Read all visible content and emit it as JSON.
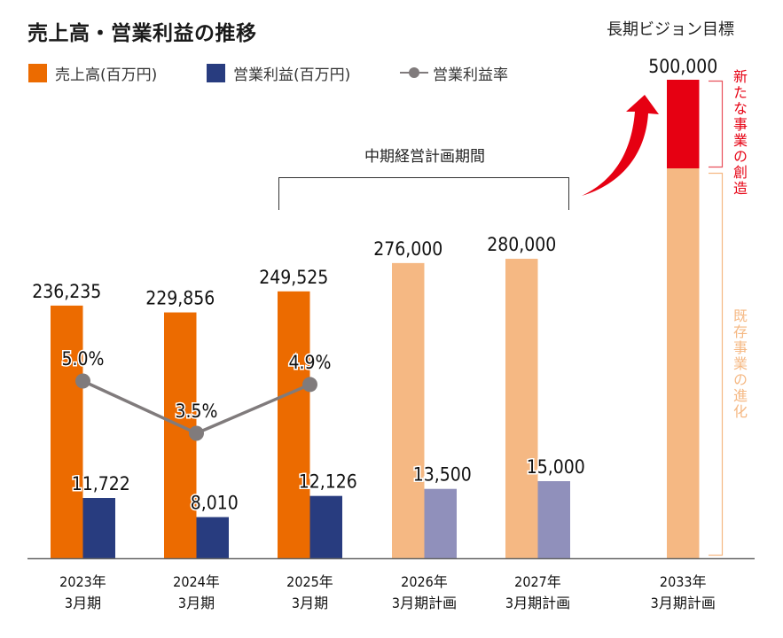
{
  "title": "売上高・営業利益の推移",
  "vision_title": "長期ビジョン目標",
  "midterm_label": "中期経営計画期間",
  "side_labels": {
    "new_business": "新たな事業の創造",
    "existing_business": "既存事業の進化"
  },
  "colors": {
    "sales_actual": "#ec6b00",
    "sales_plan": "#f5b883",
    "profit_actual": "#283c7f",
    "profit_plan": "#9090bb",
    "margin_line": "#807b7c",
    "new_business": "#e60012",
    "axis": "#666666"
  },
  "chart_data": {
    "type": "bar",
    "title": "売上高・営業利益の推移",
    "xlabel": "",
    "ylabel": "",
    "legend_position": "top-left",
    "grid": false,
    "categories": [
      [
        "2023年",
        "3月期"
      ],
      [
        "2024年",
        "3月期"
      ],
      [
        "2025年",
        "3月期"
      ],
      [
        "2026年",
        "3月期計画"
      ],
      [
        "2027年",
        "3月期計画"
      ],
      [
        "2033年",
        "3月期計画"
      ]
    ],
    "series": [
      {
        "name": "売上高(百万円)",
        "type": "bar",
        "values": [
          236235,
          229856,
          249525,
          276000,
          280000,
          500000
        ],
        "labels": [
          "236,235",
          "229,856",
          "249,525",
          "276,000",
          "280,000",
          "500,000"
        ],
        "plan": [
          false,
          false,
          false,
          true,
          true,
          true
        ]
      },
      {
        "name": "営業利益(百万円)",
        "type": "bar",
        "values": [
          11722,
          8010,
          12126,
          13500,
          15000,
          null
        ],
        "labels": [
          "11,722",
          "8,010",
          "12,126",
          "13,500",
          "15,000",
          null
        ],
        "plan": [
          false,
          false,
          false,
          true,
          true,
          null
        ]
      },
      {
        "name": "営業利益率",
        "type": "line",
        "values": [
          5.0,
          3.5,
          4.9,
          null,
          null,
          null
        ],
        "labels": [
          "5.0%",
          "3.5%",
          "4.9%",
          null,
          null,
          null
        ]
      }
    ],
    "legend": [
      "売上高(百万円)",
      "営業利益(百万円)",
      "営業利益率"
    ],
    "annotations": [
      "中期経営計画期間",
      "長期ビジョン目標",
      "新たな事業の創造",
      "既存事業の進化"
    ]
  }
}
